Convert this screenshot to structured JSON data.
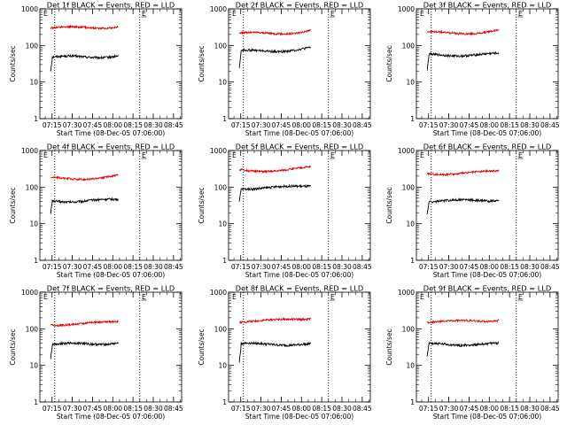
{
  "figure": {
    "colors": {
      "events": "#000000",
      "lld": "#dd0000",
      "axes": "#000000",
      "background": "#ffffff"
    },
    "x_ticks": [
      "07:15",
      "07:30",
      "07:45",
      "08:00",
      "08:15",
      "08:30",
      "08:45"
    ],
    "y_ticks": [
      "1",
      "10",
      "100",
      "1000"
    ]
  },
  "chart_data": [
    {
      "type": "line",
      "title": "Det 1f BLACK = Events, RED = LLD",
      "ylabel": "Counts/sec",
      "xlabel": "Start Time (08-Dec-05 07:06:00)",
      "yscale": "log",
      "ylim": [
        1,
        1000
      ],
      "xlim": [
        "07:06",
        "08:51"
      ],
      "grid": false,
      "vlines": [
        "07:17",
        "08:20"
      ],
      "marker": {
        "x": "08:23",
        "label": "E"
      },
      "tick_label_x": "07:06",
      "time_range": [
        "07:14",
        "08:04"
      ],
      "series": [
        {
          "role": "events",
          "color": "#000000",
          "start": 20,
          "level": 48,
          "end": 52
        },
        {
          "role": "lld",
          "color": "#dd0000",
          "level": 300,
          "end": 340
        }
      ]
    },
    {
      "type": "line",
      "title": "Det 2f BLACK = Events, RED = LLD",
      "ylabel": "Counts/sec",
      "xlabel": "Start Time (08-Dec-05 07:06:00)",
      "yscale": "log",
      "ylim": [
        1,
        1000
      ],
      "xlim": [
        "07:06",
        "08:51"
      ],
      "grid": false,
      "vlines": [
        "07:17",
        "08:20"
      ],
      "marker": {
        "x": "08:23",
        "label": "E"
      },
      "tick_label_x": "07:06",
      "time_range": [
        "07:14",
        "08:07"
      ],
      "series": [
        {
          "role": "events",
          "color": "#000000",
          "start": 25,
          "level": 70,
          "end": 85
        },
        {
          "role": "lld",
          "color": "#dd0000",
          "level": 210,
          "end": 270
        }
      ]
    },
    {
      "type": "line",
      "title": "Det 3f BLACK = Events, RED = LLD",
      "ylabel": "Counts/sec",
      "xlabel": "Start Time (08-Dec-05 07:06:00)",
      "yscale": "log",
      "ylim": [
        1,
        1000
      ],
      "xlim": [
        "07:06",
        "08:51"
      ],
      "grid": false,
      "vlines": [
        "07:17",
        "08:20"
      ],
      "marker": {
        "x": "08:23",
        "label": "E"
      },
      "tick_label_x": "07:06",
      "time_range": [
        "07:14",
        "08:07"
      ],
      "series": [
        {
          "role": "events",
          "color": "#000000",
          "start": 22,
          "level": 55,
          "end": 58
        },
        {
          "role": "lld",
          "color": "#dd0000",
          "level": 220,
          "end": 260
        }
      ]
    },
    {
      "type": "line",
      "title": "Det 4f BLACK = Events, RED = LLD",
      "ylabel": "Counts/sec",
      "xlabel": "Start Time (08-Dec-05 07:06:00)",
      "yscale": "log",
      "ylim": [
        1,
        1000
      ],
      "xlim": [
        "07:06",
        "08:51"
      ],
      "grid": false,
      "vlines": [
        "07:17",
        "08:20"
      ],
      "marker": {
        "x": "08:23",
        "label": "E"
      },
      "tick_label_x": "07:06",
      "time_range": [
        "07:14",
        "08:04"
      ],
      "series": [
        {
          "role": "events",
          "color": "#000000",
          "start": 20,
          "level": 42,
          "end": 45
        },
        {
          "role": "lld",
          "color": "#dd0000",
          "level": 175,
          "end": 200
        }
      ]
    },
    {
      "type": "line",
      "title": "Det 5f BLACK = Events, RED = LLD",
      "ylabel": "Counts/sec",
      "xlabel": "Start Time (08-Dec-05 07:06:00)",
      "yscale": "log",
      "ylim": [
        1,
        1000
      ],
      "xlim": [
        "07:06",
        "08:51"
      ],
      "grid": false,
      "vlines": [
        "07:17",
        "08:20"
      ],
      "marker": {
        "x": "08:23",
        "label": "E"
      },
      "tick_label_x": "07:06",
      "time_range": [
        "07:14",
        "08:07"
      ],
      "series": [
        {
          "role": "events",
          "color": "#000000",
          "start": 40,
          "level": 95,
          "end": 110
        },
        {
          "role": "lld",
          "color": "#dd0000",
          "level": 290,
          "end": 340
        }
      ]
    },
    {
      "type": "line",
      "title": "Det 6f BLACK = Events, RED = LLD",
      "ylabel": "Counts/sec",
      "xlabel": "Start Time (08-Dec-05 07:06:00)",
      "yscale": "log",
      "ylim": [
        1,
        1000
      ],
      "xlim": [
        "07:06",
        "08:51"
      ],
      "grid": false,
      "vlines": [
        "07:17",
        "08:20"
      ],
      "marker": {
        "x": "08:23",
        "label": "E"
      },
      "tick_label_x": "07:06",
      "time_range": [
        "07:14",
        "08:07"
      ],
      "series": [
        {
          "role": "events",
          "color": "#000000",
          "start": 18,
          "level": 42,
          "end": 45
        },
        {
          "role": "lld",
          "color": "#dd0000",
          "level": 240,
          "end": 270
        }
      ]
    },
    {
      "type": "line",
      "title": "Det 7f BLACK = Events, RED = LLD",
      "ylabel": "Counts/sec",
      "xlabel": "Start Time (08-Dec-05 07:06:00)",
      "yscale": "log",
      "ylim": [
        1,
        1000
      ],
      "xlim": [
        "07:06",
        "08:51"
      ],
      "grid": false,
      "vlines": [
        "07:17",
        "08:20"
      ],
      "marker": {
        "x": "08:23",
        "label": "E"
      },
      "tick_label_x": "07:06",
      "time_range": [
        "07:14",
        "08:04"
      ],
      "series": [
        {
          "role": "events",
          "color": "#000000",
          "start": 15,
          "level": 38,
          "end": 42
        },
        {
          "role": "lld",
          "color": "#dd0000",
          "level": 135,
          "end": 160
        }
      ]
    },
    {
      "type": "line",
      "title": "Det 8f BLACK = Events, RED = LLD",
      "ylabel": "Counts/sec",
      "xlabel": "Start Time (08-Dec-05 07:06:00)",
      "yscale": "log",
      "ylim": [
        1,
        1000
      ],
      "xlim": [
        "07:06",
        "08:51"
      ],
      "grid": false,
      "vlines": [
        "07:17",
        "08:20"
      ],
      "marker": {
        "x": "08:23",
        "label": "E"
      },
      "tick_label_x": "07:06",
      "time_range": [
        "07:14",
        "08:07"
      ],
      "series": [
        {
          "role": "events",
          "color": "#000000",
          "start": 12,
          "level": 38,
          "end": 38
        },
        {
          "role": "lld",
          "color": "#dd0000",
          "level": 165,
          "end": 195
        }
      ]
    },
    {
      "type": "line",
      "title": "Det 9f BLACK = Events, RED = LLD",
      "ylabel": "Counts/sec",
      "xlabel": "Start Time (08-Dec-05 07:06:00)",
      "yscale": "log",
      "ylim": [
        1,
        1000
      ],
      "xlim": [
        "07:06",
        "08:51"
      ],
      "grid": false,
      "vlines": [
        "07:17",
        "08:20"
      ],
      "marker": {
        "x": "08:23",
        "label": "E"
      },
      "tick_label_x": "07:06",
      "time_range": [
        "07:14",
        "08:07"
      ],
      "series": [
        {
          "role": "events",
          "color": "#000000",
          "start": 18,
          "level": 38,
          "end": 38
        },
        {
          "role": "lld",
          "color": "#dd0000",
          "level": 155,
          "end": 180
        }
      ]
    }
  ]
}
